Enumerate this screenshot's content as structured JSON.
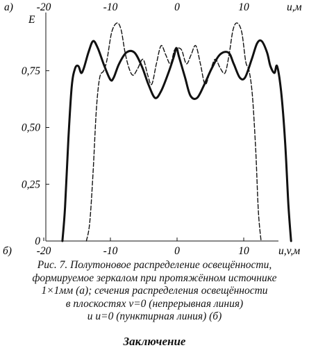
{
  "figure": {
    "top_panel_label": "а)",
    "bottom_panel_label": "б)",
    "top_axis": {
      "ticks": [
        {
          "label": "-20",
          "value": -20
        },
        {
          "label": "-10",
          "value": -10
        },
        {
          "label": "0",
          "value": 0
        },
        {
          "label": "10",
          "value": 10
        }
      ],
      "label": "u,м"
    }
  },
  "chart_data": {
    "type": "line",
    "ylabel": "E",
    "xlabel": "u,v,м",
    "xlim": [
      -21,
      19
    ],
    "ylim": [
      0,
      1.0
    ],
    "x_ticks": [
      {
        "label": "-20",
        "value": -20
      },
      {
        "label": "-10",
        "value": -10
      },
      {
        "label": "0",
        "value": 0
      },
      {
        "label": "10",
        "value": 10
      }
    ],
    "y_ticks": [
      {
        "label": "0",
        "value": 0
      },
      {
        "label": "0,25",
        "value": 0.25
      },
      {
        "label": "0,50",
        "value": 0.5
      },
      {
        "label": "0,75",
        "value": 0.75
      }
    ],
    "grid": false,
    "series": [
      {
        "style": "solid",
        "points": [
          [
            -17.2,
            0.0
          ],
          [
            -16.8,
            0.15
          ],
          [
            -16.3,
            0.45
          ],
          [
            -15.8,
            0.68
          ],
          [
            -15.3,
            0.76
          ],
          [
            -14.8,
            0.77
          ],
          [
            -14.4,
            0.74
          ],
          [
            -14.0,
            0.76
          ],
          [
            -13.3,
            0.83
          ],
          [
            -12.6,
            0.88
          ],
          [
            -11.9,
            0.85
          ],
          [
            -10.9,
            0.77
          ],
          [
            -10.0,
            0.71
          ],
          [
            -9.5,
            0.72
          ],
          [
            -8.7,
            0.78
          ],
          [
            -7.6,
            0.83
          ],
          [
            -6.4,
            0.83
          ],
          [
            -5.3,
            0.77
          ],
          [
            -4.3,
            0.69
          ],
          [
            -3.3,
            0.63
          ],
          [
            -2.4,
            0.66
          ],
          [
            -1.3,
            0.74
          ],
          [
            -0.5,
            0.81
          ],
          [
            -0.1,
            0.85
          ],
          [
            0.3,
            0.81
          ],
          [
            1.2,
            0.72
          ],
          [
            2.0,
            0.64
          ],
          [
            3.0,
            0.63
          ],
          [
            4.1,
            0.69
          ],
          [
            5.2,
            0.76
          ],
          [
            6.4,
            0.82
          ],
          [
            7.7,
            0.83
          ],
          [
            8.5,
            0.78
          ],
          [
            9.4,
            0.72
          ],
          [
            10.2,
            0.72
          ],
          [
            11.2,
            0.8
          ],
          [
            12.0,
            0.87
          ],
          [
            12.7,
            0.88
          ],
          [
            13.5,
            0.83
          ],
          [
            14.0,
            0.77
          ],
          [
            14.6,
            0.74
          ],
          [
            15.0,
            0.77
          ],
          [
            15.6,
            0.66
          ],
          [
            16.2,
            0.44
          ],
          [
            16.7,
            0.16
          ],
          [
            17.1,
            0.0
          ]
        ]
      },
      {
        "style": "dashed",
        "points": [
          [
            -13.6,
            0.0
          ],
          [
            -13.1,
            0.08
          ],
          [
            -12.6,
            0.3
          ],
          [
            -12.1,
            0.58
          ],
          [
            -11.6,
            0.72
          ],
          [
            -11.0,
            0.75
          ],
          [
            -10.5,
            0.8
          ],
          [
            -9.8,
            0.92
          ],
          [
            -9.0,
            0.96
          ],
          [
            -8.4,
            0.93
          ],
          [
            -7.8,
            0.83
          ],
          [
            -7.2,
            0.76
          ],
          [
            -6.6,
            0.73
          ],
          [
            -5.9,
            0.76
          ],
          [
            -5.1,
            0.8
          ],
          [
            -4.4,
            0.73
          ],
          [
            -3.8,
            0.69
          ],
          [
            -3.1,
            0.78
          ],
          [
            -2.4,
            0.86
          ],
          [
            -1.7,
            0.82
          ],
          [
            -1.0,
            0.78
          ],
          [
            -0.4,
            0.84
          ],
          [
            0.1,
            0.85
          ],
          [
            0.7,
            0.84
          ],
          [
            1.4,
            0.78
          ],
          [
            2.1,
            0.82
          ],
          [
            2.8,
            0.86
          ],
          [
            3.5,
            0.78
          ],
          [
            4.2,
            0.69
          ],
          [
            4.9,
            0.74
          ],
          [
            5.7,
            0.8
          ],
          [
            6.5,
            0.76
          ],
          [
            7.2,
            0.74
          ],
          [
            7.8,
            0.82
          ],
          [
            8.4,
            0.93
          ],
          [
            9.0,
            0.96
          ],
          [
            9.7,
            0.92
          ],
          [
            10.3,
            0.79
          ],
          [
            10.8,
            0.75
          ],
          [
            11.3,
            0.64
          ],
          [
            11.8,
            0.4
          ],
          [
            12.2,
            0.13
          ],
          [
            12.6,
            0.0
          ]
        ]
      }
    ]
  },
  "caption": [
    "Рис. 7. Полутоновое распределение освещённости,",
    "формируемое зеркалом при протяжённом источнике",
    "1×1мм (а); сечения распределения освещённости",
    "в плоскостях v=0 (непрерывная линия)",
    "и u=0 (пунктирная линия) (б)"
  ],
  "section_heading": "Заключение"
}
